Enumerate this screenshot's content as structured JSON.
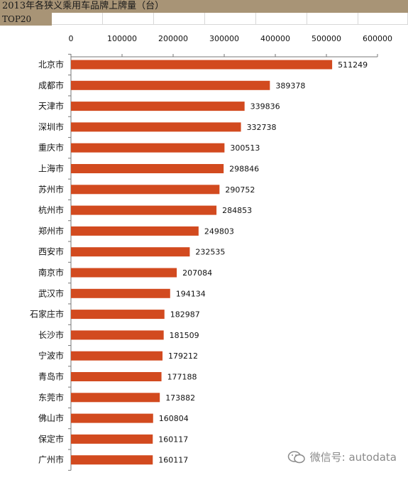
{
  "header": {
    "title": "2013年各狭义乘用车品牌上牌量（台）",
    "subtitle": "TOP20"
  },
  "watermark": {
    "text": "微信号: autodata",
    "icon": "wechat-icon"
  },
  "chart_data": {
    "type": "bar",
    "orientation": "horizontal",
    "title": "2013年各狭义乘用车品牌上牌量（台）",
    "subtitle": "TOP20",
    "categories": [
      "北京市",
      "成都市",
      "天津市",
      "深圳市",
      "重庆市",
      "上海市",
      "苏州市",
      "杭州市",
      "郑州市",
      "西安市",
      "南京市",
      "武汉市",
      "石家庄市",
      "长沙市",
      "宁波市",
      "青岛市",
      "东莞市",
      "佛山市",
      "保定市",
      "广州市"
    ],
    "values": [
      511249,
      389378,
      339836,
      332738,
      300513,
      298846,
      290752,
      284853,
      249803,
      232535,
      207084,
      194134,
      182987,
      181509,
      179212,
      177188,
      173882,
      160804,
      160117,
      160117
    ],
    "xlim": [
      0,
      600000
    ],
    "ticks": [
      0,
      100000,
      200000,
      300000,
      400000,
      500000,
      600000
    ],
    "tick_labels": [
      "0",
      "100000",
      "200000",
      "300000",
      "400000",
      "500000",
      "600000"
    ],
    "axis_position": "top",
    "grid": false,
    "legend": "none",
    "bar_color": "#d24a1f"
  }
}
